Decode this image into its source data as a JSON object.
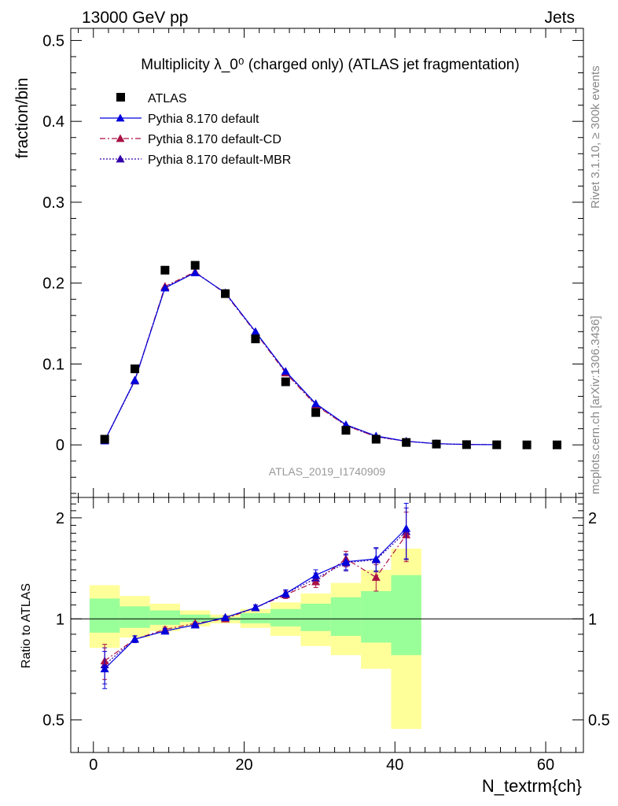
{
  "header": {
    "energy_label": "13000 GeV pp",
    "process_label": "Jets"
  },
  "side_text": {
    "rivet": "Rivet 3.1.10, ≥ 300k events",
    "source": "mcplots.cern.ch [arXiv:1306.3436]"
  },
  "colors": {
    "data": "#000000",
    "default": "#0000dd",
    "cd": "#aa1144",
    "mbr": "#3300aa",
    "band_outer": "#ffff99",
    "band_inner": "#99ff99"
  },
  "chart_data": [
    {
      "type": "scatter",
      "title": "Multiplicity λ_0⁰ (charged only) (ATLAS jet fragmentation)",
      "ylabel": "fraction/bin",
      "analysis_label": "ATLAS_2019_I1740909",
      "xlim": [
        -3,
        65
      ],
      "ylim": [
        -0.065,
        0.515
      ],
      "yticks": [
        0,
        0.1,
        0.2,
        0.3,
        0.4,
        0.5
      ],
      "yticklabels": [
        "0",
        "0.1",
        "0.2",
        "0.3",
        "0.4",
        "0.5"
      ],
      "legend_position": "top-left",
      "series": [
        {
          "name": "ATLAS",
          "style": "square",
          "x": [
            1.5,
            5.5,
            9.5,
            13.5,
            17.5,
            21.5,
            25.5,
            29.5,
            33.5,
            37.5,
            41.5,
            45.5,
            49.5,
            53.5,
            57.5,
            61.5
          ],
          "y": [
            0.007,
            0.094,
            0.216,
            0.222,
            0.187,
            0.131,
            0.078,
            0.04,
            0.018,
            0.007,
            0.003,
            0.001,
            0.0003,
            0.0001,
            0.0,
            0.0
          ]
        },
        {
          "name": "Pythia 8.170 default",
          "style": "solid",
          "x": [
            1.5,
            5.5,
            9.5,
            13.5,
            17.5,
            21.5,
            25.5,
            29.5,
            33.5,
            37.5,
            41.5,
            45.5,
            49.5,
            53.5
          ],
          "y": [
            0.005,
            0.08,
            0.194,
            0.213,
            0.188,
            0.14,
            0.091,
            0.051,
            0.025,
            0.011,
            0.0045,
            0.0015,
            0.0005,
            0.0002
          ]
        },
        {
          "name": "Pythia 8.170 default-CD",
          "style": "dashdot",
          "x": [
            1.5,
            5.5,
            9.5,
            13.5,
            17.5,
            21.5,
            25.5,
            29.5,
            33.5,
            37.5,
            41.5,
            45.5,
            49.5,
            53.5
          ],
          "y": [
            0.0055,
            0.08,
            0.196,
            0.214,
            0.187,
            0.139,
            0.089,
            0.049,
            0.024,
            0.01,
            0.0044,
            0.0015,
            0.0005,
            0.0002
          ]
        },
        {
          "name": "Pythia 8.170 default-MBR",
          "style": "dotted",
          "x": [
            1.5,
            5.5,
            9.5,
            13.5,
            17.5,
            21.5,
            25.5,
            29.5,
            33.5,
            37.5,
            41.5,
            45.5,
            49.5,
            53.5
          ],
          "y": [
            0.0052,
            0.079,
            0.195,
            0.213,
            0.188,
            0.14,
            0.09,
            0.05,
            0.024,
            0.01,
            0.0044,
            0.0015,
            0.0005,
            0.0002
          ]
        }
      ]
    },
    {
      "type": "line",
      "ylabel": "Ratio to ATLAS",
      "xlabel": "N_textrm{ch}",
      "xlim": [
        -3,
        65
      ],
      "xticks": [
        0,
        20,
        40,
        60
      ],
      "xticklabels": [
        "0",
        "20",
        "40",
        "60"
      ],
      "ylim": [
        0.4,
        2.3
      ],
      "y_scale": "log",
      "yticks": [
        0.5,
        1,
        2
      ],
      "yticklabels": [
        "0.5",
        "1",
        "2"
      ],
      "reference_line": 1,
      "bands": {
        "edges": [
          -0.5,
          3.5,
          7.5,
          11.5,
          15.5,
          19.5,
          23.5,
          27.5,
          31.5,
          35.5,
          39.5,
          43.5
        ],
        "outer_low": [
          0.82,
          0.88,
          0.92,
          0.95,
          0.97,
          0.94,
          0.89,
          0.83,
          0.78,
          0.71,
          0.47
        ],
        "outer_high": [
          1.26,
          1.17,
          1.11,
          1.06,
          1.03,
          1.07,
          1.12,
          1.19,
          1.28,
          1.4,
          1.62
        ],
        "inner_low": [
          0.91,
          0.94,
          0.96,
          0.98,
          0.99,
          0.97,
          0.95,
          0.92,
          0.89,
          0.85,
          0.78
        ],
        "inner_high": [
          1.15,
          1.09,
          1.06,
          1.03,
          1.01,
          1.04,
          1.07,
          1.11,
          1.16,
          1.21,
          1.35
        ]
      },
      "series": [
        {
          "name": "Pythia 8.170 default",
          "style": "solid",
          "x": [
            1.5,
            5.5,
            9.5,
            13.5,
            17.5,
            21.5,
            25.5,
            29.5,
            33.5,
            37.5,
            41.5
          ],
          "y": [
            0.71,
            0.87,
            0.92,
            0.96,
            1.01,
            1.08,
            1.19,
            1.35,
            1.48,
            1.51,
            1.86
          ],
          "err": [
            0.09,
            0.02,
            0.015,
            0.01,
            0.01,
            0.02,
            0.03,
            0.05,
            0.08,
            0.12,
            0.35
          ]
        },
        {
          "name": "Pythia 8.170 default-CD",
          "style": "dashdot",
          "x": [
            1.5,
            5.5,
            9.5,
            13.5,
            17.5,
            21.5,
            25.5,
            29.5,
            33.5,
            37.5,
            41.5
          ],
          "y": [
            0.75,
            0.87,
            0.93,
            0.97,
            1.0,
            1.08,
            1.18,
            1.29,
            1.51,
            1.33,
            1.78
          ],
          "err": [
            0.09,
            0.02,
            0.015,
            0.01,
            0.01,
            0.02,
            0.03,
            0.05,
            0.08,
            0.12,
            0.3
          ]
        },
        {
          "name": "Pythia 8.170 default-MBR",
          "style": "dotted",
          "x": [
            1.5,
            5.5,
            9.5,
            13.5,
            17.5,
            21.5,
            25.5,
            29.5,
            33.5,
            37.5,
            41.5
          ],
          "y": [
            0.73,
            0.87,
            0.92,
            0.96,
            1.01,
            1.08,
            1.19,
            1.32,
            1.47,
            1.5,
            1.82
          ],
          "err": [
            0.09,
            0.02,
            0.015,
            0.01,
            0.01,
            0.02,
            0.03,
            0.05,
            0.08,
            0.12,
            0.32
          ]
        }
      ]
    }
  ]
}
